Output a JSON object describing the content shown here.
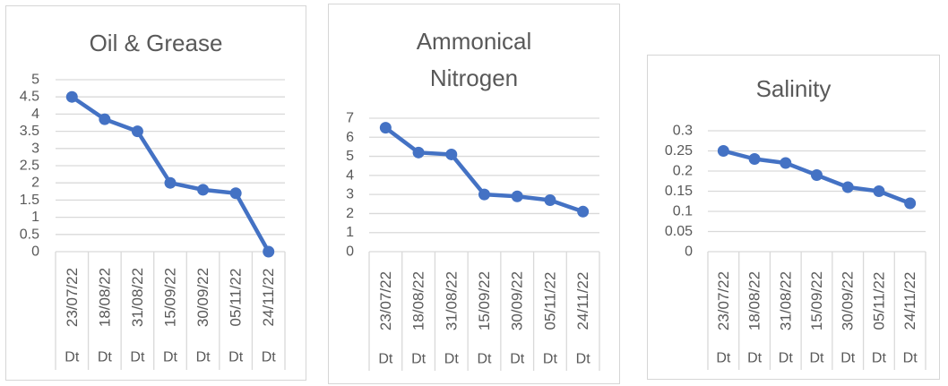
{
  "page": {
    "background": "#FFFFFF"
  },
  "colors": {
    "accent": "#4472C4",
    "gridline": "#D9D9D9",
    "panel_border": "#D6D6D6",
    "text": "#595959"
  },
  "chart_data": [
    {
      "type": "line",
      "title": "Oil & Grease",
      "title_lines": [
        "Oil & Grease"
      ],
      "xlabel": "",
      "ylabel": "",
      "grid": true,
      "legend_position": "none",
      "categories": [
        "23/07/22",
        "18/08/22",
        "31/08/22",
        "15/09/22",
        "30/09/22",
        "05/11/22",
        "24/11/22"
      ],
      "sublabels": [
        "Dt",
        "Dt",
        "Dt",
        "Dt",
        "Dt",
        "Dt",
        "Dt"
      ],
      "values": [
        4.5,
        3.85,
        3.5,
        2,
        1.8,
        1.7,
        0
      ],
      "ylim": [
        0,
        5
      ],
      "ytick_step": 0.5,
      "line_color": "#4472C4",
      "marker": "circle"
    },
    {
      "type": "line",
      "title": "Ammonical Nitrogen",
      "title_lines": [
        "Ammonical",
        "Nitrogen"
      ],
      "xlabel": "",
      "ylabel": "",
      "grid": true,
      "legend_position": "none",
      "categories": [
        "23/07/22",
        "18/08/22",
        "31/08/22",
        "15/09/22",
        "30/09/22",
        "05/11/22",
        "24/11/22"
      ],
      "sublabels": [
        "Dt",
        "Dt",
        "Dt",
        "Dt",
        "Dt",
        "Dt",
        "Dt"
      ],
      "values": [
        6.5,
        5.2,
        5.1,
        3,
        2.9,
        2.7,
        2.1
      ],
      "ylim": [
        0,
        7
      ],
      "ytick_step": 1,
      "line_color": "#4472C4",
      "marker": "circle"
    },
    {
      "type": "line",
      "title": "Salinity",
      "title_lines": [
        "Salinity"
      ],
      "xlabel": "",
      "ylabel": "",
      "grid": true,
      "legend_position": "none",
      "categories": [
        "23/07/22",
        "18/08/22",
        "31/08/22",
        "15/09/22",
        "30/09/22",
        "05/11/22",
        "24/11/22"
      ],
      "sublabels": [
        "Dt",
        "Dt",
        "Dt",
        "Dt",
        "Dt",
        "Dt",
        "Dt"
      ],
      "values": [
        0.25,
        0.23,
        0.22,
        0.19,
        0.16,
        0.15,
        0.12
      ],
      "ylim": [
        0,
        0.3
      ],
      "ytick_step": 0.05,
      "line_color": "#4472C4",
      "marker": "circle"
    }
  ]
}
